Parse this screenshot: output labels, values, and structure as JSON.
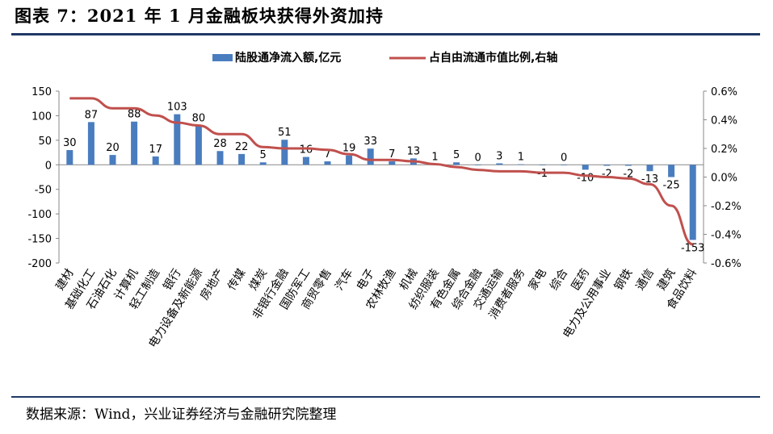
{
  "figure": {
    "title": "图表 7：2021 年 1 月金融板块获得外资加持",
    "source": "数据来源：Wind，兴业证券经济与金融研究院整理"
  },
  "chart_data": {
    "type": "bar",
    "categories": [
      "建材",
      "基础化工",
      "石油石化",
      "计算机",
      "轻工制造",
      "银行",
      "电力设备及新能源",
      "房地产",
      "传媒",
      "煤炭",
      "非银行金融",
      "国防军工",
      "商贸零售",
      "汽车",
      "电子",
      "农林牧渔",
      "机械",
      "纺织服装",
      "有色金属",
      "综合金融",
      "交通运输",
      "消费者服务",
      "家电",
      "综合",
      "医药",
      "电力及公用事业",
      "钢铁",
      "通信",
      "建筑",
      "食品饮料"
    ],
    "series": [
      {
        "name": "陆股通净流入额,亿元",
        "type": "bar",
        "axis": "left",
        "color": "#4a7dbf",
        "values": [
          30,
          87,
          20,
          88,
          17,
          103,
          80,
          28,
          22,
          5,
          51,
          16,
          7,
          19,
          33,
          7,
          13,
          1,
          5,
          0,
          3,
          1,
          -1,
          0,
          -10,
          -2,
          -2,
          -13,
          -25,
          -153
        ],
        "labels": [
          "30",
          "87",
          "20",
          "88",
          "17",
          "103",
          "80",
          "28",
          "22",
          "5",
          "51",
          "16",
          "7",
          "19",
          "33",
          "7",
          "13",
          "1",
          "5",
          "0",
          "3",
          "1",
          "-1",
          "0",
          "-10",
          "-2",
          "-2",
          "-13",
          "-25",
          "-153"
        ]
      },
      {
        "name": "占自由流通市值比例,右轴",
        "type": "line",
        "axis": "right",
        "color": "#c0504d",
        "values": [
          0.55,
          0.55,
          0.48,
          0.48,
          0.43,
          0.38,
          0.36,
          0.3,
          0.3,
          0.21,
          0.2,
          0.2,
          0.19,
          0.16,
          0.12,
          0.12,
          0.11,
          0.09,
          0.07,
          0.05,
          0.04,
          0.04,
          0.03,
          0.03,
          0.01,
          0.0,
          -0.01,
          -0.05,
          -0.2,
          -0.47
        ]
      }
    ],
    "y_left": {
      "min": -200,
      "max": 150,
      "ticks": [
        "150",
        "100",
        "50",
        "0",
        "-50",
        "-100",
        "-150",
        "-200"
      ]
    },
    "y_right": {
      "min": -0.6,
      "max": 0.6,
      "ticks": [
        "0.6%",
        "0.4%",
        "0.2%",
        "0.0%",
        "-0.2%",
        "-0.4%",
        "-0.6%"
      ]
    },
    "legend_position": "top",
    "grid": false
  }
}
